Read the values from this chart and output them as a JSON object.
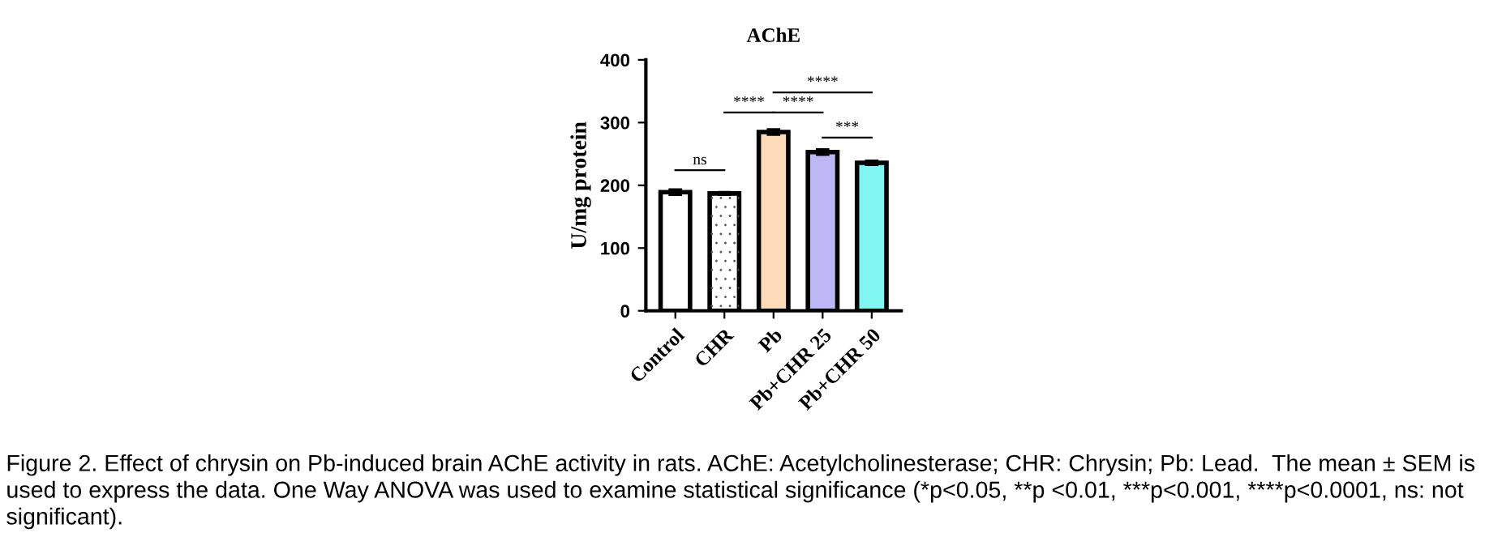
{
  "chart_data": {
    "type": "bar",
    "title": "AChE",
    "ylabel": "U/mg protein",
    "categories": [
      "Control",
      "CHR",
      "Pb",
      "Pb+CHR 25",
      "Pb+CHR 50"
    ],
    "values": [
      189,
      187,
      285,
      253,
      236
    ],
    "errors": [
      4,
      2,
      4,
      4,
      3
    ],
    "colors": [
      "#ffffff",
      "#ffffff",
      "#fddbb8",
      "#bdb8f5",
      "#80f5f2"
    ],
    "ylim": [
      0,
      400
    ],
    "yticks": [
      0,
      100,
      200,
      300,
      400
    ],
    "grid": false,
    "legend": false,
    "annotations": [
      "ns",
      "****",
      "****",
      "****",
      "***",
      "Figure 2. Effect of chrysin on Pb-induced brain AChE activity in rats. AChE: Acetylcholinesterase; CHR: Chrysin; Pb: Lead.  The mean ± SEM is used to express the data. One Way ANOVA was used to examine statistical significance (*p<0.05, **p <0.01, ***p<0.001, ****p<0.0001, ns: not significant)."
    ]
  }
}
